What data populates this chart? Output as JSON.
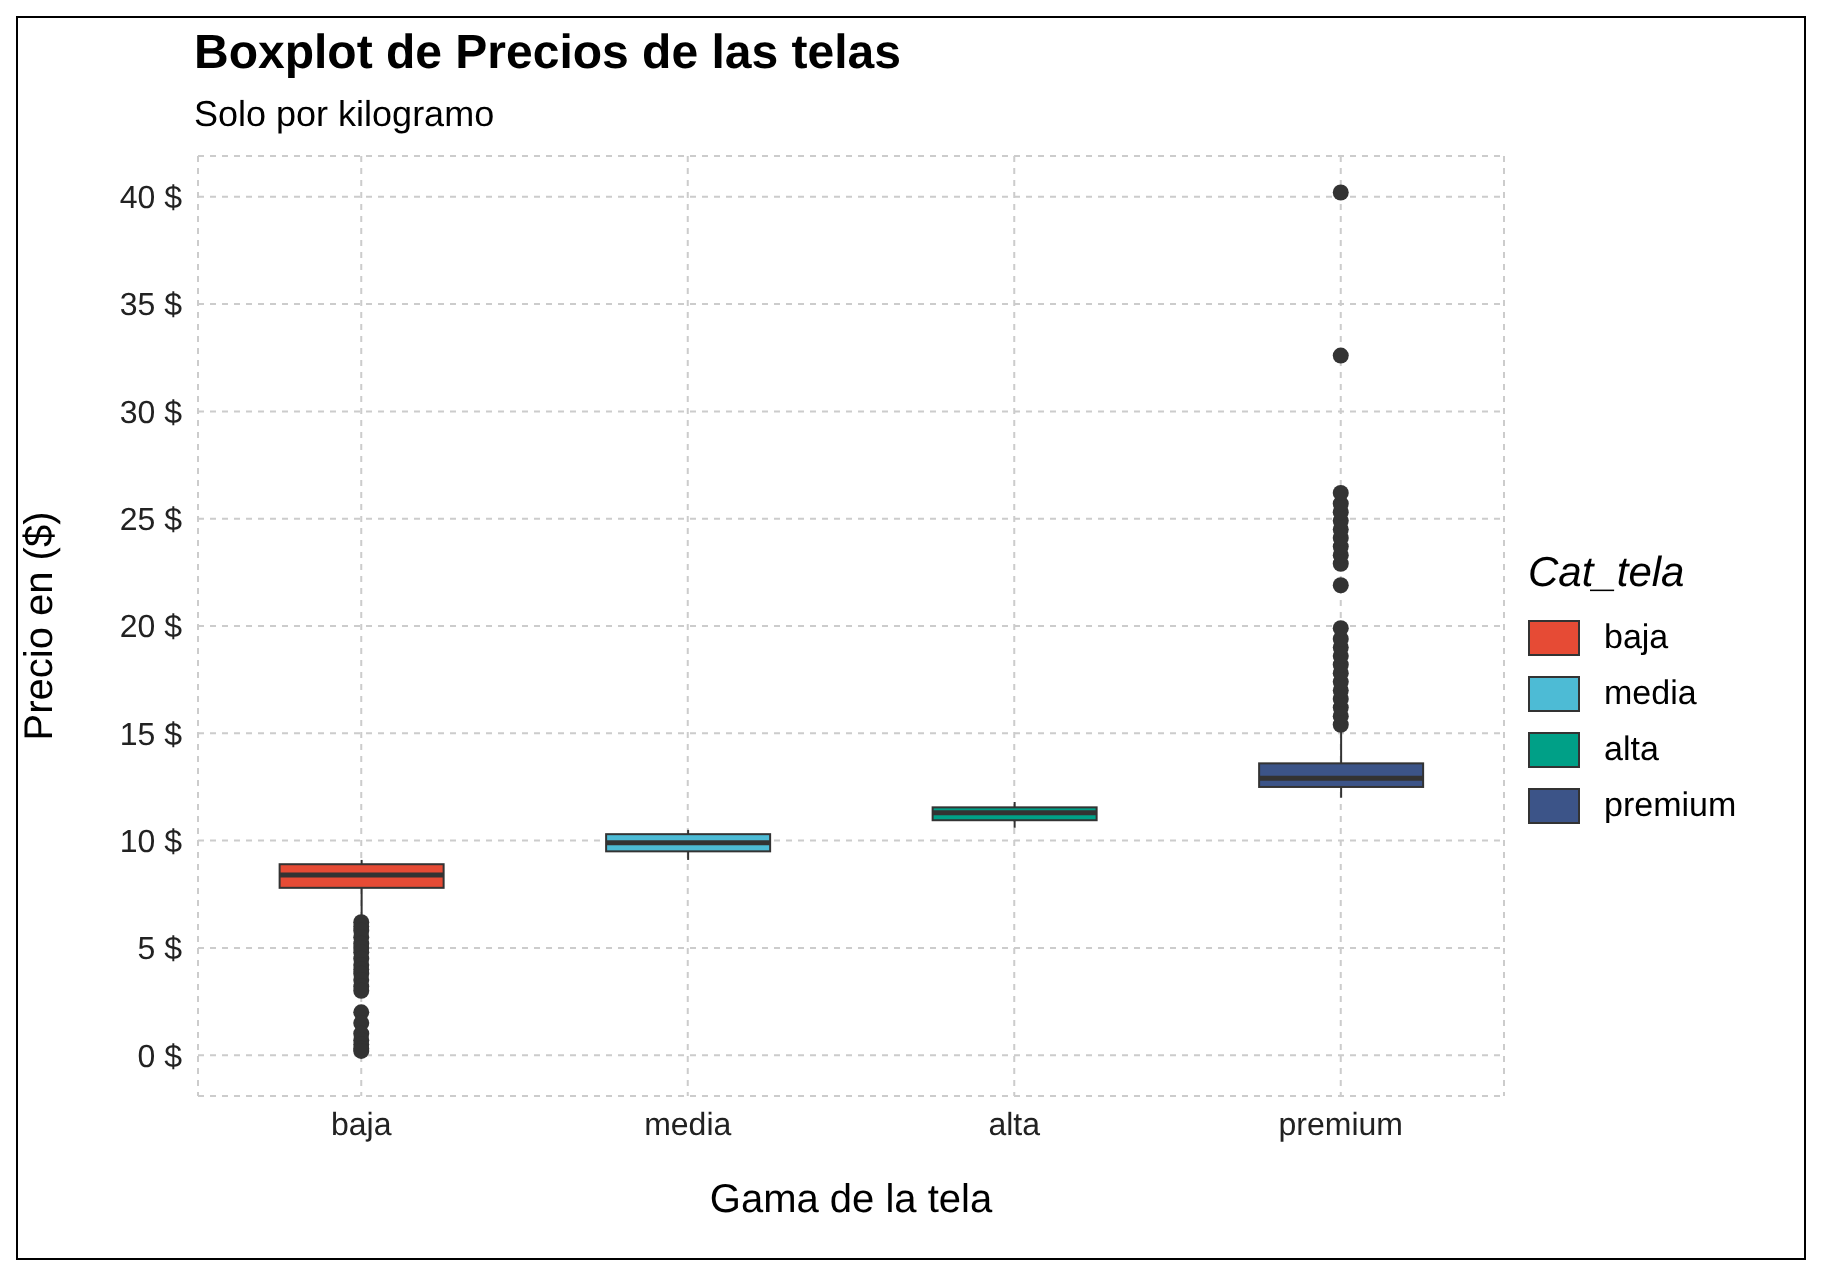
{
  "chart_data": {
    "type": "box",
    "title": "Boxplot de Precios de las telas",
    "subtitle": "Solo por kilogramo",
    "xlabel": "Gama de la tela",
    "ylabel": "Precio en ($)",
    "legend_title": "Cat_tela",
    "legend": "right",
    "grid": true,
    "categories": [
      "baja",
      "media",
      "alta",
      "premium"
    ],
    "ylim": [
      -1.9,
      41.9
    ],
    "yticks": [
      {
        "value": 0,
        "label": "0 $"
      },
      {
        "value": 5,
        "label": "5 $"
      },
      {
        "value": 10,
        "label": "10 $"
      },
      {
        "value": 15,
        "label": "15 $"
      },
      {
        "value": 20,
        "label": "20 $"
      },
      {
        "value": 25,
        "label": "25 $"
      },
      {
        "value": 30,
        "label": "30 $"
      },
      {
        "value": 35,
        "label": "35 $"
      },
      {
        "value": 40,
        "label": "40 $"
      }
    ],
    "series": [
      {
        "name": "baja",
        "color": "#e64b35",
        "boxes": [
          {
            "low": 6.5,
            "q1": 7.8,
            "median": 8.4,
            "q3": 8.9,
            "high": 9.1,
            "outliers": [
              6.2,
              6.0,
              5.8,
              5.5,
              5.2,
              5.0,
              4.8,
              4.5,
              4.2,
              4.0,
              3.8,
              3.5,
              3.2,
              3.0,
              2.0,
              1.5,
              1.0,
              0.7,
              0.5,
              0.3,
              0.2
            ]
          },
          null,
          null,
          null
        ]
      },
      {
        "name": "media",
        "color": "#4dbbd5",
        "boxes": [
          null,
          {
            "low": 9.1,
            "q1": 9.5,
            "median": 9.9,
            "q3": 10.3,
            "high": 10.5
          },
          null,
          null
        ]
      },
      {
        "name": "alta",
        "color": "#00a087",
        "boxes": [
          null,
          null,
          {
            "low": 10.6,
            "q1": 10.95,
            "median": 11.3,
            "q3": 11.55,
            "high": 11.8
          },
          null
        ]
      },
      {
        "name": "premium",
        "color": "#3c5488",
        "boxes": [
          null,
          null,
          null,
          {
            "low": 12.0,
            "q1": 12.5,
            "median": 12.9,
            "q3": 13.6,
            "high": 15.2,
            "outliers": [
              15.4,
              15.8,
              16.2,
              16.6,
              17.0,
              17.4,
              17.8,
              18.2,
              18.6,
              19.0,
              19.4,
              19.9,
              21.9,
              22.9,
              23.3,
              23.7,
              24.1,
              24.5,
              24.9,
              25.3,
              25.7,
              26.2,
              32.6,
              40.2
            ]
          }
        ]
      }
    ]
  }
}
